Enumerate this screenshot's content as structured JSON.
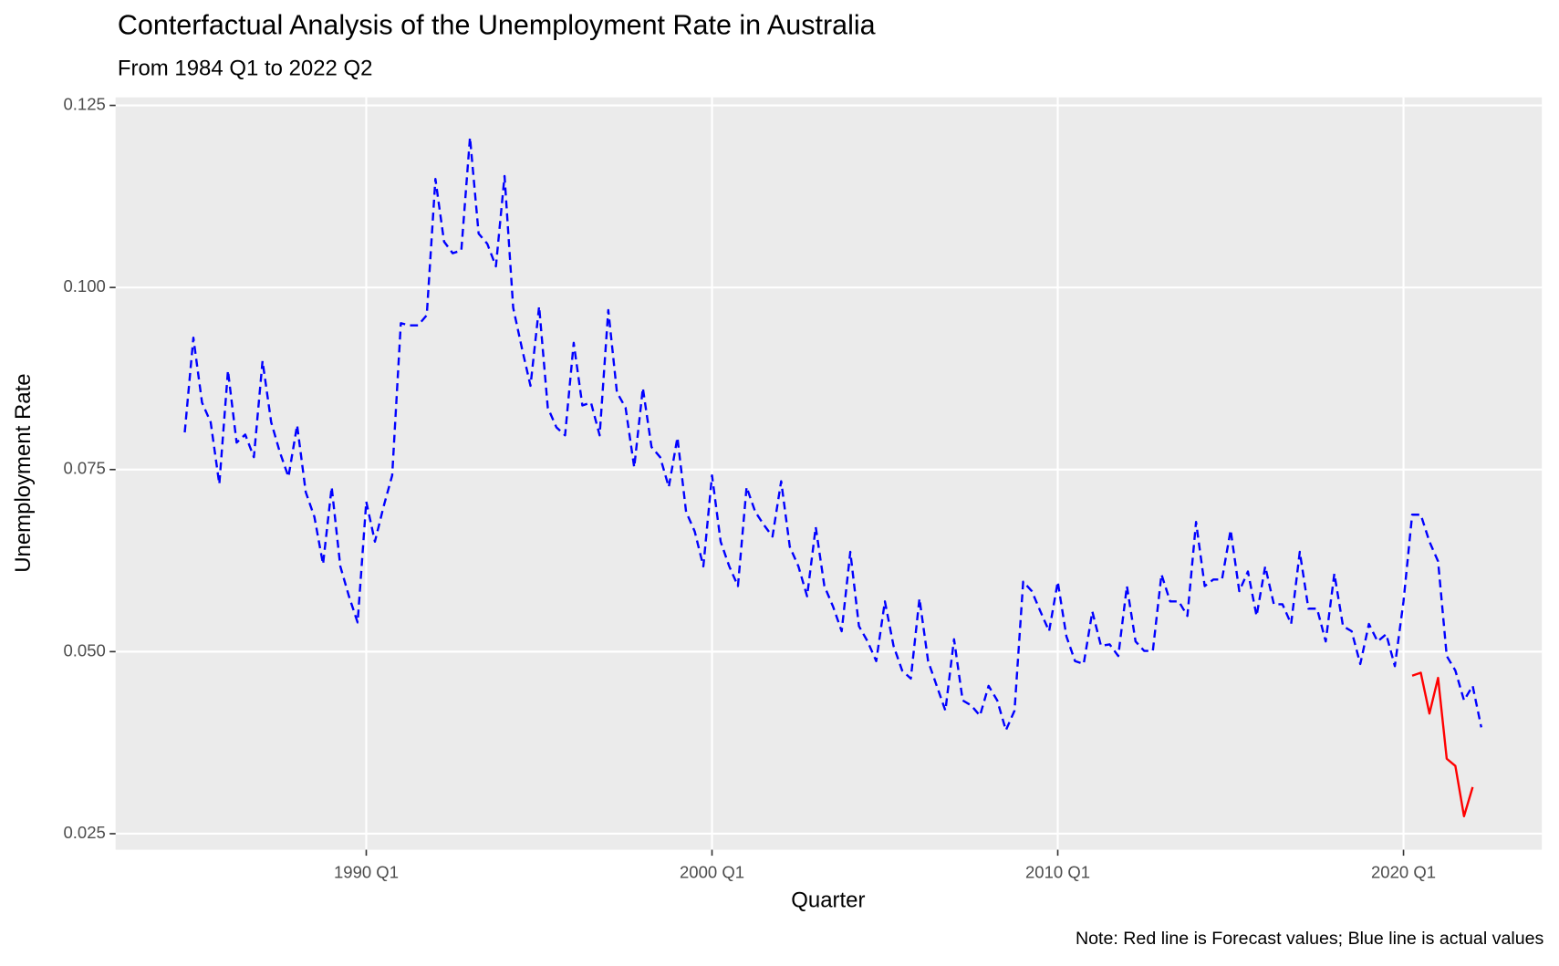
{
  "chart_data": {
    "type": "line",
    "title": "Conterfactual Analysis of the Unemployment Rate in Australia",
    "subtitle": "From 1984 Q1 to 2022 Q2",
    "x_label": "Quarter",
    "y_label": "Unemployment Rate",
    "caption": "Note: Red line is Forecast values; Blue line is actual values",
    "xlim": [
      "1982 Q4",
      "2024 Q1"
    ],
    "xticks": [
      "1990 Q1",
      "2000 Q1",
      "2010 Q1",
      "2020 Q1"
    ],
    "ylim": [
      0.0228,
      0.1261
    ],
    "yticks": [
      {
        "value": 0.025,
        "label": "0.025"
      },
      {
        "value": 0.05,
        "label": "0.050"
      },
      {
        "value": 0.075,
        "label": "0.075"
      },
      {
        "value": 0.1,
        "label": "0.100"
      },
      {
        "value": 0.125,
        "label": "0.125"
      }
    ],
    "grid": true,
    "series": [
      {
        "color": "#0000ff",
        "linetype": "dashed",
        "x": [
          "1984 Q4",
          "1985 Q1",
          "1985 Q2",
          "1985 Q3",
          "1985 Q4",
          "1986 Q1",
          "1986 Q2",
          "1986 Q3",
          "1986 Q4",
          "1987 Q1",
          "1987 Q2",
          "1987 Q3",
          "1987 Q4",
          "1988 Q1",
          "1988 Q2",
          "1988 Q3",
          "1988 Q4",
          "1989 Q1",
          "1989 Q2",
          "1989 Q3",
          "1989 Q4",
          "1990 Q1",
          "1990 Q2",
          "1990 Q3",
          "1990 Q4",
          "1991 Q1",
          "1991 Q2",
          "1991 Q3",
          "1991 Q4",
          "1992 Q1",
          "1992 Q2",
          "1992 Q3",
          "1992 Q4",
          "1993 Q1",
          "1993 Q2",
          "1993 Q3",
          "1993 Q4",
          "1994 Q1",
          "1994 Q2",
          "1994 Q3",
          "1994 Q4",
          "1995 Q1",
          "1995 Q2",
          "1995 Q3",
          "1995 Q4",
          "1996 Q1",
          "1996 Q2",
          "1996 Q3",
          "1996 Q4",
          "1997 Q1",
          "1997 Q2",
          "1997 Q3",
          "1997 Q4",
          "1998 Q1",
          "1998 Q2",
          "1998 Q3",
          "1998 Q4",
          "1999 Q1",
          "1999 Q2",
          "1999 Q3",
          "1999 Q4",
          "2000 Q1",
          "2000 Q2",
          "2000 Q3",
          "2000 Q4",
          "2001 Q1",
          "2001 Q2",
          "2001 Q3",
          "2001 Q4",
          "2002 Q1",
          "2002 Q2",
          "2002 Q3",
          "2002 Q4",
          "2003 Q1",
          "2003 Q2",
          "2003 Q3",
          "2003 Q4",
          "2004 Q1",
          "2004 Q2",
          "2004 Q3",
          "2004 Q4",
          "2005 Q1",
          "2005 Q2",
          "2005 Q3",
          "2005 Q4",
          "2006 Q1",
          "2006 Q2",
          "2006 Q3",
          "2006 Q4",
          "2007 Q1",
          "2007 Q2",
          "2007 Q3",
          "2007 Q4",
          "2008 Q1",
          "2008 Q2",
          "2008 Q3",
          "2008 Q4",
          "2009 Q1",
          "2009 Q2",
          "2009 Q3",
          "2009 Q4",
          "2010 Q1",
          "2010 Q2",
          "2010 Q3",
          "2010 Q4",
          "2011 Q1",
          "2011 Q2",
          "2011 Q3",
          "2011 Q4",
          "2012 Q1",
          "2012 Q2",
          "2012 Q3",
          "2012 Q4",
          "2013 Q1",
          "2013 Q2",
          "2013 Q3",
          "2013 Q4",
          "2014 Q1",
          "2014 Q2",
          "2014 Q3",
          "2014 Q4",
          "2015 Q1",
          "2015 Q2",
          "2015 Q3",
          "2015 Q4",
          "2016 Q1",
          "2016 Q2",
          "2016 Q3",
          "2016 Q4",
          "2017 Q1",
          "2017 Q2",
          "2017 Q3",
          "2017 Q4",
          "2018 Q1",
          "2018 Q2",
          "2018 Q3",
          "2018 Q4",
          "2019 Q1",
          "2019 Q2",
          "2019 Q3",
          "2019 Q4",
          "2020 Q1",
          "2020 Q2",
          "2020 Q3",
          "2020 Q4",
          "2021 Q1",
          "2021 Q2",
          "2021 Q3",
          "2021 Q4",
          "2022 Q1",
          "2022 Q2"
        ],
        "values": [
          0.0801,
          0.0931,
          0.0842,
          0.0815,
          0.073,
          0.0886,
          0.0787,
          0.0798,
          0.0767,
          0.0899,
          0.0815,
          0.0774,
          0.074,
          0.0811,
          0.0719,
          0.0685,
          0.062,
          0.0726,
          0.0617,
          0.0576,
          0.054,
          0.0706,
          0.0651,
          0.0699,
          0.0742,
          0.0951,
          0.0948,
          0.0948,
          0.0962,
          0.1149,
          0.1063,
          0.1047,
          0.1051,
          0.1206,
          0.1074,
          0.106,
          0.1029,
          0.1153,
          0.0972,
          0.0917,
          0.0865,
          0.0974,
          0.0835,
          0.0808,
          0.0797,
          0.0924,
          0.0838,
          0.0842,
          0.0797,
          0.0969,
          0.0856,
          0.0835,
          0.0753,
          0.0862,
          0.0781,
          0.0767,
          0.0726,
          0.0794,
          0.0692,
          0.0665,
          0.0617,
          0.0742,
          0.0651,
          0.0617,
          0.059,
          0.0726,
          0.0692,
          0.0674,
          0.0658,
          0.0734,
          0.0644,
          0.0617,
          0.0576,
          0.0671,
          0.059,
          0.0562,
          0.0528,
          0.0637,
          0.0535,
          0.0514,
          0.0487,
          0.0569,
          0.0508,
          0.0474,
          0.0463,
          0.0573,
          0.0487,
          0.0453,
          0.0419,
          0.0517,
          0.0433,
          0.0426,
          0.0412,
          0.0453,
          0.0433,
          0.0392,
          0.0419,
          0.0596,
          0.0583,
          0.0555,
          0.0528,
          0.0596,
          0.0521,
          0.0487,
          0.0483,
          0.0555,
          0.0508,
          0.051,
          0.0494,
          0.059,
          0.0514,
          0.0501,
          0.0501,
          0.0606,
          0.0569,
          0.0569,
          0.0549,
          0.0678,
          0.059,
          0.0599,
          0.0599,
          0.0667,
          0.0583,
          0.061,
          0.0549,
          0.0617,
          0.0565,
          0.0565,
          0.0538,
          0.0637,
          0.0559,
          0.0559,
          0.0514,
          0.0607,
          0.0535,
          0.0528,
          0.0483,
          0.0538,
          0.0514,
          0.0524,
          0.048,
          0.0569,
          0.0688,
          0.0688,
          0.0651,
          0.0624,
          0.0494,
          0.0474,
          0.0433,
          0.0453,
          0.0396
        ]
      },
      {
        "color": "#ff0000",
        "linetype": "solid",
        "x": [
          "2020 Q2",
          "2020 Q3",
          "2020 Q4",
          "2021 Q1",
          "2021 Q2",
          "2021 Q3",
          "2021 Q4",
          "2022 Q1"
        ],
        "values": [
          0.0467,
          0.0471,
          0.0415,
          0.0464,
          0.0353,
          0.0343,
          0.0274,
          0.0314
        ]
      }
    ]
  }
}
